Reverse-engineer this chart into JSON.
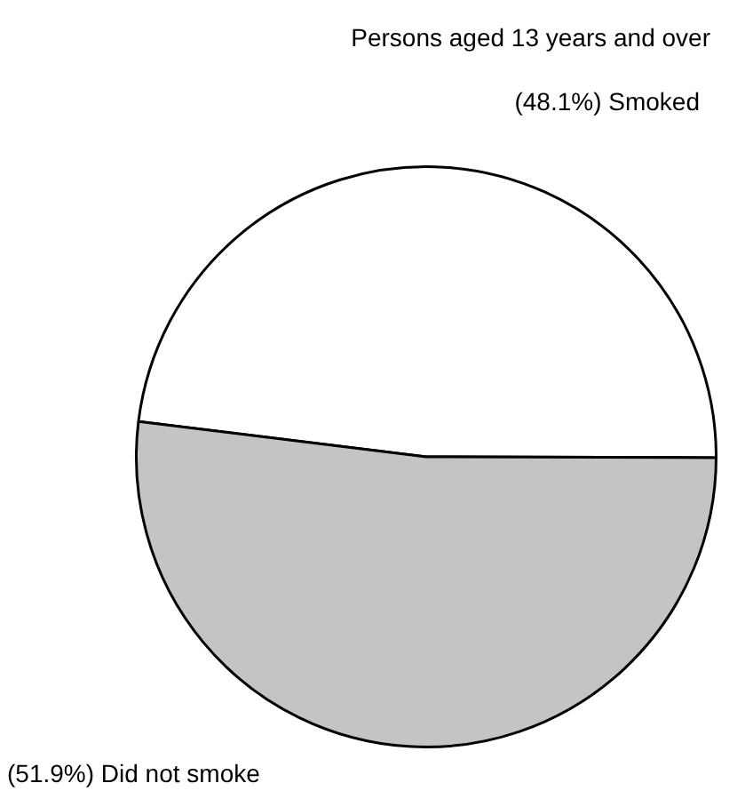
{
  "chart_data": {
    "type": "pie",
    "title": "Persons aged 13 years and over",
    "categories": [
      "Smoked",
      "Did not smoke"
    ],
    "values": [
      48.1,
      51.9
    ],
    "value_labels": [
      "(48.1%)",
      "(51.9%)"
    ],
    "colors": [
      "#ffffff",
      "#c4c4c4"
    ],
    "legend": false
  }
}
